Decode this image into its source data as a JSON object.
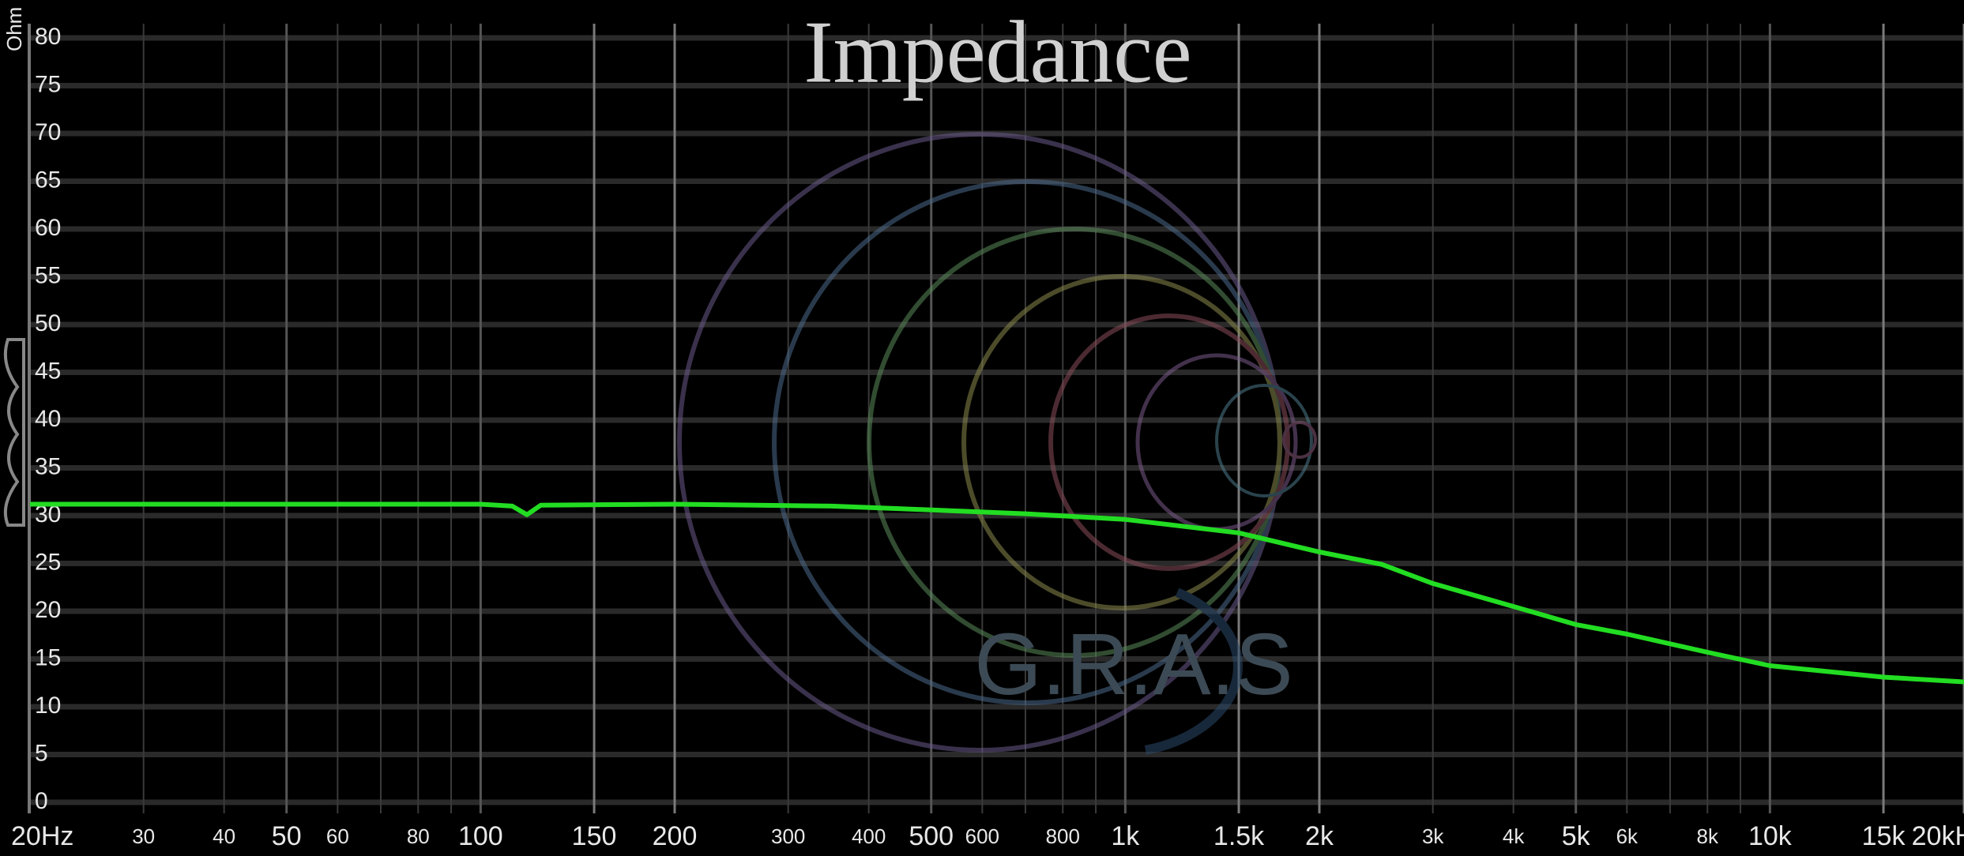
{
  "chart_data": {
    "type": "line",
    "title": "Impedance",
    "ylabel": "Ohm",
    "watermark": "G.R.A.S",
    "xscale": "log",
    "grid": true,
    "x": [
      20,
      100,
      112,
      118,
      124,
      200,
      350,
      500,
      700,
      1000,
      1500,
      2000,
      2500,
      3000,
      4000,
      5000,
      6000,
      8000,
      10000,
      15000,
      20000
    ],
    "series": [
      {
        "name": "Impedance",
        "color": "#22dd22",
        "values": [
          31.2,
          31.2,
          31.0,
          30.1,
          31.1,
          31.2,
          31.0,
          30.6,
          30.2,
          29.6,
          28.2,
          26.2,
          24.9,
          22.9,
          20.5,
          18.6,
          17.6,
          15.7,
          14.3,
          13.1,
          12.6
        ]
      }
    ],
    "xlim": [
      20,
      20000
    ],
    "xticks": [
      {
        "value": 20,
        "label": "20Hz"
      },
      30,
      40,
      50,
      60,
      80,
      100,
      150,
      200,
      300,
      400,
      500,
      600,
      800,
      {
        "value": 1000,
        "label": "1k"
      },
      {
        "value": 1500,
        "label": "1.5k"
      },
      {
        "value": 2000,
        "label": "2k"
      },
      {
        "value": 3000,
        "label": "3k"
      },
      {
        "value": 4000,
        "label": "4k"
      },
      {
        "value": 5000,
        "label": "5k"
      },
      {
        "value": 6000,
        "label": "6k"
      },
      {
        "value": 8000,
        "label": "8k"
      },
      {
        "value": 10000,
        "label": "10k"
      },
      {
        "value": 15000,
        "label": "15k"
      },
      {
        "value": 20000,
        "label": "20kHz"
      }
    ],
    "xminor": [
      70,
      90,
      700,
      900,
      7000,
      9000
    ],
    "ylim": [
      0,
      80
    ],
    "yticks": [
      0,
      5,
      10,
      15,
      20,
      25,
      30,
      35,
      40,
      45,
      50,
      55,
      60,
      65,
      70,
      75,
      80
    ]
  }
}
